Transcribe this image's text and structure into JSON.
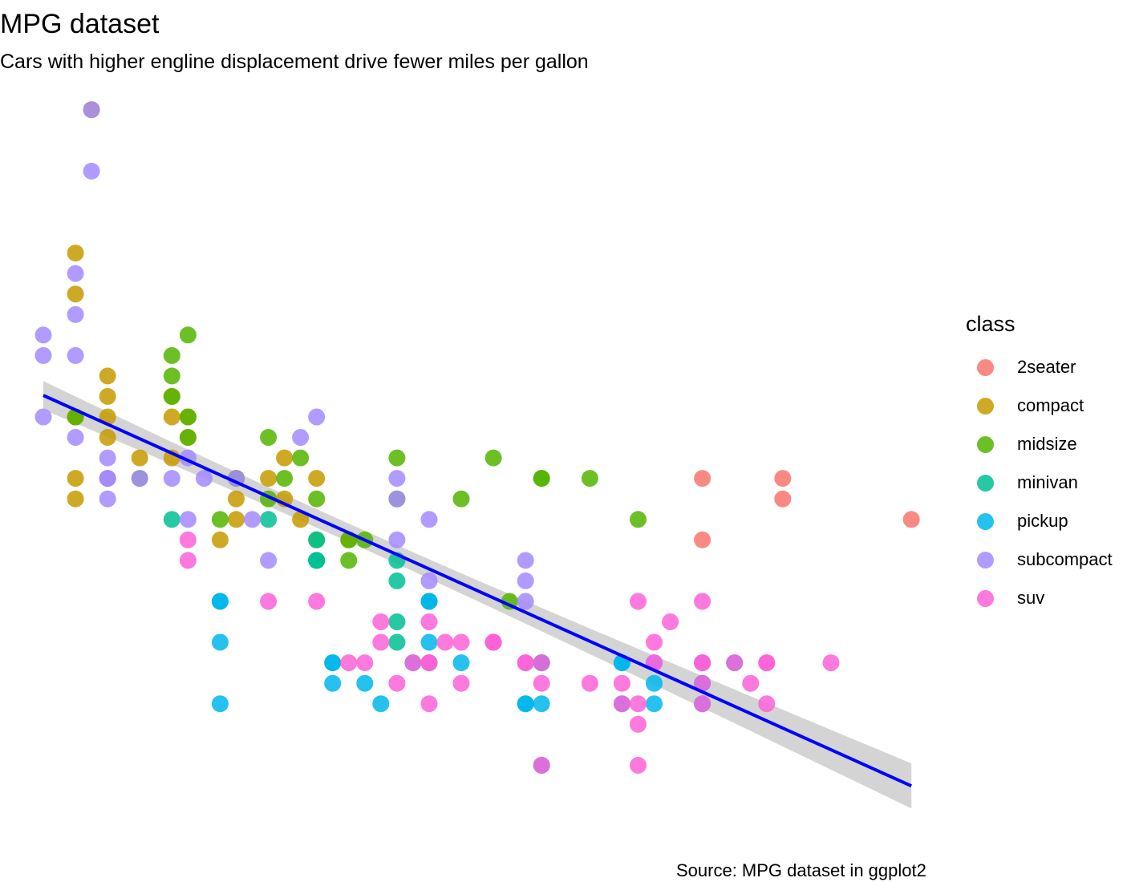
{
  "title": "MPG dataset",
  "subtitle": "Cars with higher engline displacement drive fewer miles per gallon",
  "caption": "Source: MPG dataset in ggplot2",
  "chart_data": {
    "type": "scatter",
    "title": "MPG dataset",
    "subtitle": "Cars with higher engline displacement drive fewer miles per gallon",
    "caption": "Source: MPG dataset in ggplot2",
    "xlabel": "",
    "ylabel": "",
    "x_variable": "displ",
    "y_variable": "hwy",
    "xlim": [
      1.45,
      7.15
    ],
    "ylim": [
      10.5,
      45
    ],
    "grid": false,
    "axes_visible": false,
    "legend": {
      "title": "class",
      "position": "right",
      "entries": [
        {
          "name": "2seater",
          "color": "#F8766D"
        },
        {
          "name": "compact",
          "color": "#C49A00"
        },
        {
          "name": "midsize",
          "color": "#53B400"
        },
        {
          "name": "minivan",
          "color": "#00C094"
        },
        {
          "name": "pickup",
          "color": "#00B6EB"
        },
        {
          "name": "subcompact",
          "color": "#A58AFF"
        },
        {
          "name": "suv",
          "color": "#FB61D7"
        }
      ]
    },
    "series": [
      {
        "name": "2seater",
        "color": "#F8766D",
        "points": [
          [
            5.7,
            26
          ],
          [
            5.7,
            23
          ],
          [
            6.2,
            26
          ],
          [
            6.2,
            25
          ],
          [
            7.0,
            24
          ]
        ]
      },
      {
        "name": "compact",
        "color": "#C49A00",
        "points": [
          [
            1.8,
            29
          ],
          [
            1.8,
            29
          ],
          [
            2.0,
            31
          ],
          [
            2.0,
            30
          ],
          [
            2.8,
            26
          ],
          [
            2.8,
            26
          ],
          [
            3.1,
            27
          ],
          [
            1.8,
            26
          ],
          [
            1.8,
            25
          ],
          [
            2.0,
            28
          ],
          [
            2.8,
            25
          ],
          [
            3.1,
            25
          ],
          [
            2.2,
            27
          ],
          [
            2.4,
            30
          ],
          [
            2.4,
            27
          ],
          [
            3.0,
            26
          ],
          [
            1.9,
            44
          ],
          [
            2.0,
            29
          ],
          [
            2.0,
            26
          ],
          [
            2.5,
            28
          ],
          [
            2.5,
            29
          ],
          [
            2.8,
            24
          ],
          [
            1.8,
            35
          ],
          [
            1.8,
            37
          ],
          [
            2.4,
            29
          ],
          [
            3.3,
            26
          ],
          [
            2.7,
            23
          ],
          [
            3.2,
            24
          ],
          [
            3.5,
            23
          ]
        ]
      },
      {
        "name": "midsize",
        "color": "#53B400",
        "points": [
          [
            2.4,
            30
          ],
          [
            2.4,
            31
          ],
          [
            2.5,
            29
          ],
          [
            3.1,
            26
          ],
          [
            3.3,
            25
          ],
          [
            3.8,
            27
          ],
          [
            3.8,
            25
          ],
          [
            4.2,
            25
          ],
          [
            2.8,
            26
          ],
          [
            3.5,
            23
          ],
          [
            4.4,
            27
          ],
          [
            4.7,
            26
          ],
          [
            4.7,
            26
          ],
          [
            5.0,
            26
          ],
          [
            3.0,
            28
          ],
          [
            3.2,
            27
          ],
          [
            2.4,
            32
          ],
          [
            2.5,
            33
          ],
          [
            1.8,
            29
          ],
          [
            2.2,
            26
          ],
          [
            2.5,
            28
          ],
          [
            3.0,
            25
          ],
          [
            3.3,
            23
          ],
          [
            4.5,
            20
          ],
          [
            3.6,
            23
          ],
          [
            2.7,
            24
          ],
          [
            3.5,
            22
          ],
          [
            5.3,
            24
          ]
        ]
      },
      {
        "name": "minivan",
        "color": "#00C094",
        "points": [
          [
            2.4,
            24
          ],
          [
            3.0,
            24
          ],
          [
            3.3,
            22
          ],
          [
            3.3,
            22
          ],
          [
            3.8,
            22
          ],
          [
            3.8,
            21
          ],
          [
            4.0,
            20
          ],
          [
            3.3,
            22
          ],
          [
            3.8,
            19
          ],
          [
            3.8,
            18
          ],
          [
            3.3,
            23
          ]
        ]
      },
      {
        "name": "pickup",
        "color": "#00B6EB",
        "points": [
          [
            2.7,
            18
          ],
          [
            2.7,
            15
          ],
          [
            3.7,
            15
          ],
          [
            3.9,
            17
          ],
          [
            4.7,
            12
          ],
          [
            4.7,
            17
          ],
          [
            4.7,
            15
          ],
          [
            5.2,
            17
          ],
          [
            5.2,
            15
          ],
          [
            5.7,
            16
          ],
          [
            5.9,
            17
          ],
          [
            4.2,
            17
          ],
          [
            4.6,
            15
          ],
          [
            4.6,
            15
          ],
          [
            5.4,
            16
          ],
          [
            5.4,
            15
          ],
          [
            4.0,
            17
          ],
          [
            4.0,
            18
          ],
          [
            4.0,
            20
          ],
          [
            3.4,
            17
          ],
          [
            2.7,
            20
          ],
          [
            2.7,
            20
          ],
          [
            3.4,
            17
          ],
          [
            3.4,
            16
          ],
          [
            4.0,
            20
          ],
          [
            4.7,
            17
          ],
          [
            5.4,
            17
          ],
          [
            4.7,
            17
          ],
          [
            5.7,
            17
          ],
          [
            3.6,
            16
          ],
          [
            5.2,
            17
          ],
          [
            5.7,
            15
          ]
        ]
      },
      {
        "name": "subcompact",
        "color": "#A58AFF",
        "points": [
          [
            1.6,
            32
          ],
          [
            1.6,
            33
          ],
          [
            1.6,
            29
          ],
          [
            1.8,
            34
          ],
          [
            1.8,
            36
          ],
          [
            2.0,
            26
          ],
          [
            2.0,
            27
          ],
          [
            2.0,
            25
          ],
          [
            2.0,
            26
          ],
          [
            1.9,
            41
          ],
          [
            1.9,
            44
          ],
          [
            2.2,
            26
          ],
          [
            2.6,
            26
          ],
          [
            2.5,
            24
          ],
          [
            3.8,
            26
          ],
          [
            3.8,
            25
          ],
          [
            4.0,
            24
          ],
          [
            4.6,
            22
          ],
          [
            4.6,
            21
          ],
          [
            4.6,
            20
          ],
          [
            5.4,
            17
          ],
          [
            2.8,
            26
          ],
          [
            2.9,
            24
          ],
          [
            3.0,
            22
          ],
          [
            1.8,
            28
          ],
          [
            1.8,
            32
          ],
          [
            2.4,
            26
          ],
          [
            3.2,
            28
          ],
          [
            3.3,
            29
          ],
          [
            2.5,
            27
          ],
          [
            3.8,
            23
          ],
          [
            4.0,
            21
          ]
        ]
      },
      {
        "name": "suv",
        "color": "#FB61D7",
        "points": [
          [
            5.3,
            20
          ],
          [
            5.3,
            15
          ],
          [
            5.7,
            20
          ],
          [
            6.5,
            17
          ],
          [
            3.7,
            19
          ],
          [
            3.7,
            18
          ],
          [
            3.9,
            17
          ],
          [
            4.7,
            17
          ],
          [
            4.7,
            12
          ],
          [
            5.2,
            16
          ],
          [
            5.2,
            15
          ],
          [
            5.7,
            16
          ],
          [
            5.9,
            17
          ],
          [
            4.6,
            17
          ],
          [
            5.4,
            18
          ],
          [
            4.0,
            17
          ],
          [
            4.0,
            19
          ],
          [
            4.2,
            18
          ],
          [
            4.4,
            18
          ],
          [
            4.6,
            17
          ],
          [
            5.3,
            14
          ],
          [
            5.7,
            17
          ],
          [
            6.1,
            15
          ],
          [
            6.0,
            16
          ],
          [
            4.4,
            18
          ],
          [
            5.4,
            17
          ],
          [
            6.1,
            17
          ],
          [
            2.5,
            23
          ],
          [
            2.5,
            22
          ],
          [
            3.3,
            20
          ],
          [
            3.6,
            17
          ],
          [
            4.2,
            16
          ],
          [
            5.7,
            17
          ],
          [
            3.0,
            20
          ],
          [
            4.7,
            16
          ],
          [
            5.5,
            19
          ],
          [
            3.5,
            17
          ],
          [
            3.8,
            16
          ],
          [
            4.0,
            17
          ],
          [
            4.1,
            18
          ],
          [
            5.3,
            12
          ],
          [
            4.0,
            15
          ],
          [
            4.4,
            18
          ],
          [
            5.0,
            16
          ],
          [
            5.7,
            15
          ],
          [
            6.1,
            17
          ]
        ]
      }
    ],
    "smooth": {
      "method": "lm",
      "color": "#0000FF",
      "band_color": "#CCCCCC",
      "x_range": [
        1.6,
        7.0
      ],
      "intercept": 35.7,
      "slope": -3.53,
      "se_band_at_ends": [
        1.1,
        1.1
      ],
      "se_band_at_mean": 0.45,
      "x_mean": 3.47
    }
  }
}
